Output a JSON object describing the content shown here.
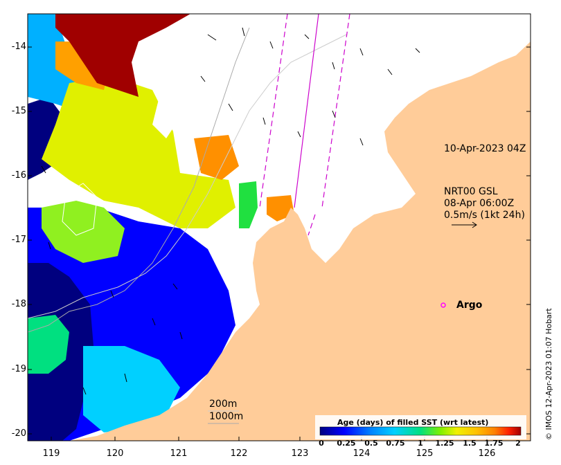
{
  "y_ticks": [
    "-14",
    "-15",
    "-16",
    "-17",
    "-18",
    "-19",
    "-20"
  ],
  "x_ticks": [
    "119",
    "120",
    "121",
    "122",
    "123",
    "124",
    "125",
    "126"
  ],
  "annotations": {
    "date_stamp": "10-Apr-2023 04Z",
    "current_line1": "NRT00 GSL",
    "current_line2": "08-Apr 06:00Z",
    "current_line3": "0.5m/s (1kt 24h)",
    "argo_label": "Argo"
  },
  "contours": {
    "c200": "200m",
    "c1000": "1000m"
  },
  "legend": {
    "title": "Age (days) of filled SST (wrt latest)",
    "ticks": [
      "0",
      "0.25",
      "0.5",
      "0.75",
      "1",
      "1.25",
      "1.5",
      "1.75",
      "2"
    ],
    "colors": [
      "#00007f",
      "#0000ff",
      "#0080ff",
      "#00d0ff",
      "#00e080",
      "#40e000",
      "#c0f000",
      "#f0f000",
      "#ffc000",
      "#ff8000",
      "#ff2000",
      "#a00000"
    ]
  },
  "credit": "© IMOS 12-Apr-2023 01:07 Hobart",
  "colors": {
    "land": "#ffcc99",
    "no_data": "#ffffff",
    "argo_marker": "#ff00ff",
    "track": "#cc00cc"
  }
}
